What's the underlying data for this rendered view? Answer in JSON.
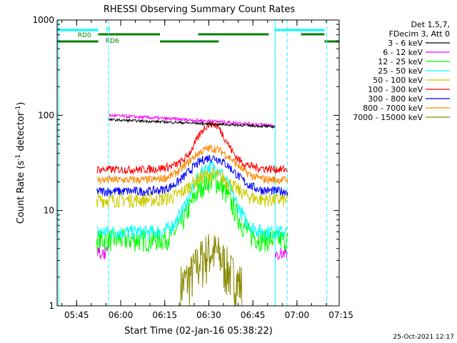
{
  "chart_data": {
    "type": "line",
    "title": "RHESSI Observing Summary Count Rates",
    "xlabel": "Start Time (02-Jan-16 05:38:22)",
    "ylabel_main": "Count Rate (s",
    "ylabel_sup1": "-1",
    "ylabel_mid": " detector",
    "ylabel_sup2": "-1",
    "ylabel_end": ")",
    "ylog": true,
    "ylim": [
      1,
      1000
    ],
    "y_ticks": [
      1,
      10,
      100,
      1000
    ],
    "y_tick_labels": [
      "1",
      "10",
      "100",
      "1000"
    ],
    "xlim_minutes": [
      0,
      96
    ],
    "x_ticks_minutes": [
      6.63,
      21.63,
      36.63,
      51.63,
      66.63,
      81.63,
      96.63
    ],
    "x_tick_labels": [
      "05:45",
      "06:00",
      "06:15",
      "06:30",
      "06:45",
      "07:00",
      "07:15"
    ],
    "legend_header": [
      "Det 1,5,7,",
      "FDecim 3, Att 0"
    ],
    "series": [
      {
        "name": "3 - 6 keV",
        "color": "#000000"
      },
      {
        "name": "6 - 12 keV",
        "color": "#ff00ff"
      },
      {
        "name": "12 - 25 keV",
        "color": "#00ff00"
      },
      {
        "name": "25 - 50 keV",
        "color": "#00ffff"
      },
      {
        "name": "50 - 100 keV",
        "color": "#cccc00"
      },
      {
        "name": "100 - 300 keV",
        "color": "#ff0000"
      },
      {
        "name": "300 - 800 keV",
        "color": "#0000ff"
      },
      {
        "name": "800 - 7000 keV",
        "color": "#ff8800"
      },
      {
        "name": "7000 - 15000 keV",
        "color": "#888800"
      }
    ],
    "annotations": {
      "night_label": "N",
      "rd0_label": "RD0",
      "rd6_label": "RD6",
      "date_stamp": "25-Oct-2021 12:17"
    }
  }
}
